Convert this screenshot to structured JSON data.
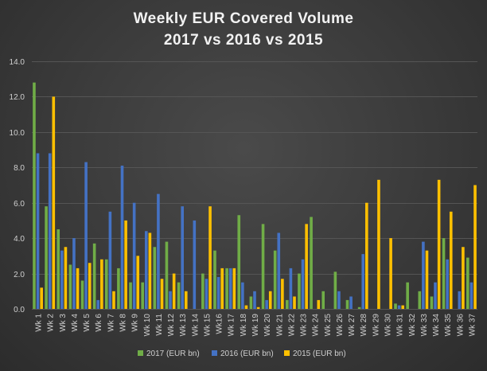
{
  "chart_data": {
    "type": "bar",
    "title": [
      "Weekly EUR Covered Volume",
      "2017 vs 2016 vs 2015"
    ],
    "xlabel": "",
    "ylabel": "",
    "ylim": [
      0,
      14
    ],
    "yticks": [
      "0.0",
      "2.0",
      "4.0",
      "6.0",
      "8.0",
      "10.0",
      "12.0",
      "14.0"
    ],
    "grid": true,
    "legend_position": "bottom",
    "categories": [
      "Wk 1",
      "Wk 2",
      "Wk 3",
      "Wk 4",
      "Wk 5",
      "Wk 6",
      "Wk 7",
      "Wk 8",
      "Wk 9",
      "Wk 10",
      "Wk 11",
      "Wk 12",
      "Wk 13",
      "Wk 14",
      "Wk 15",
      "Wk16",
      "Wk 17",
      "Wk 18",
      "Wk 19",
      "Wk 20",
      "Wk 21",
      "Wk 22",
      "Wk 23",
      "Wk 24",
      "Wk 25",
      "Wk 26",
      "Wk 27",
      "Wk 28",
      "Wk 29",
      "Wk 30",
      "Wk 31",
      "Wk 32",
      "Wk 33",
      "Wk 34",
      "Wk 35",
      "Wk 36",
      "Wk 37"
    ],
    "series": [
      {
        "name": "2017 (EUR bn)",
        "color": "#70ad47",
        "values": [
          12.8,
          5.8,
          4.5,
          2.5,
          1.6,
          3.7,
          2.8,
          2.3,
          1.5,
          1.5,
          3.5,
          3.8,
          1.5,
          0,
          2.0,
          3.3,
          2.3,
          5.3,
          0.7,
          4.8,
          3.3,
          0.5,
          2.0,
          5.2,
          1.0,
          2.1,
          0.5,
          0.1,
          0,
          0,
          0.3,
          1.5,
          1.0,
          0.7,
          4.0,
          0,
          2.9
        ]
      },
      {
        "name": "2016  (EUR bn)",
        "color": "#4472c4",
        "values": [
          8.8,
          8.8,
          3.3,
          4.0,
          8.3,
          0.5,
          5.5,
          8.1,
          6.0,
          4.4,
          6.5,
          1.0,
          5.8,
          5.0,
          1.7,
          1.8,
          2.3,
          1.5,
          1.0,
          0.5,
          4.3,
          2.3,
          2.8,
          0,
          0,
          1.0,
          0.7,
          3.1,
          0,
          0,
          0.2,
          0,
          3.8,
          1.5,
          2.8,
          1.0,
          1.5
        ]
      },
      {
        "name": "2015  (EUR bn)",
        "color": "#ffc000",
        "values": [
          1.2,
          12.0,
          3.5,
          2.3,
          2.6,
          2.8,
          1.0,
          5.0,
          3.0,
          4.3,
          1.7,
          2.0,
          1.0,
          0,
          5.8,
          2.3,
          2.3,
          0.2,
          0.1,
          1.0,
          1.7,
          0.7,
          4.8,
          0.5,
          0,
          0,
          0,
          6.0,
          7.3,
          4.0,
          0.2,
          0,
          3.3,
          7.3,
          5.5,
          3.5,
          7.0
        ]
      }
    ]
  }
}
